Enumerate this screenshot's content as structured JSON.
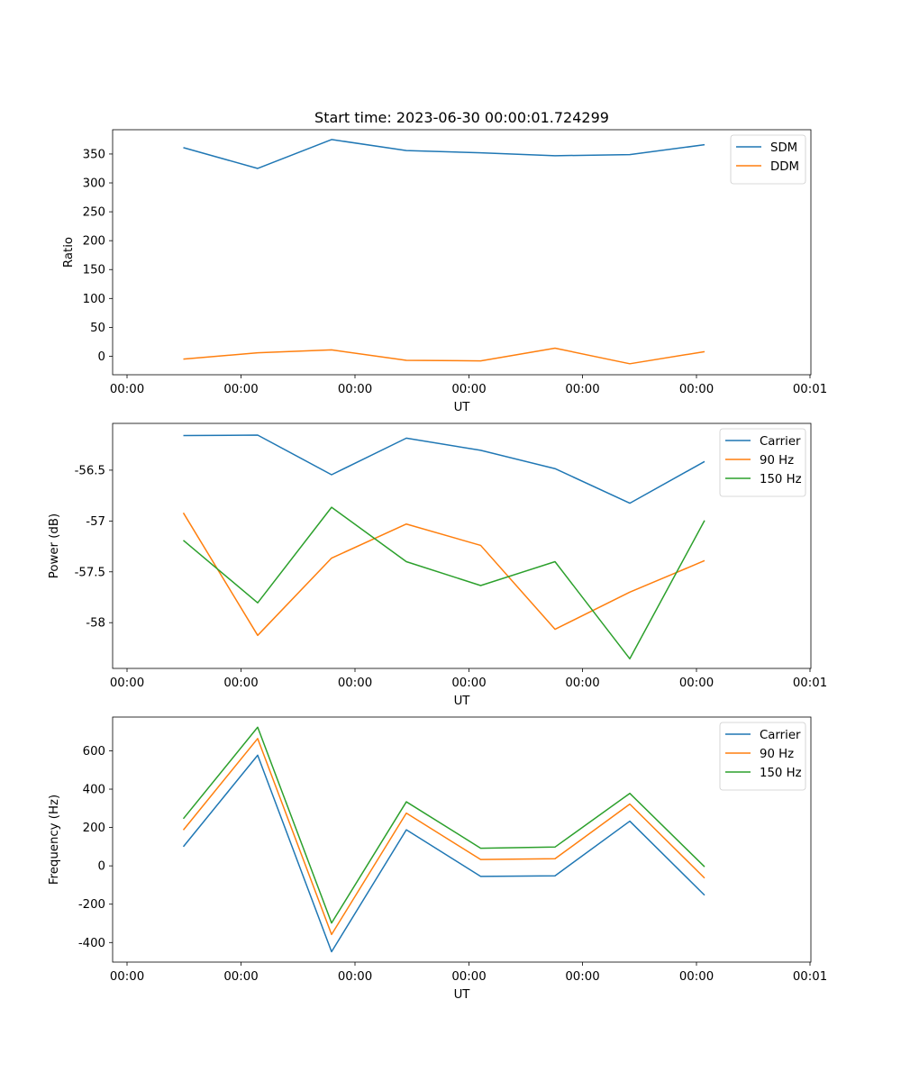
{
  "chart_data": [
    {
      "type": "line",
      "title": "Start time: 2023-06-30 00:00:01.724299",
      "xlabel": "UT",
      "ylabel": "Ratio",
      "x_ticks": [
        "00:00",
        "00:00",
        "00:00",
        "00:00",
        "00:00",
        "00:00",
        "00:00",
        "00:01"
      ],
      "ylim": [
        -32,
        392
      ],
      "y_ticks": [
        0,
        50,
        100,
        150,
        200,
        250,
        300,
        350
      ],
      "legend_position": "upper right",
      "grid": false,
      "series": [
        {
          "name": "SDM",
          "color": "#1f77b4",
          "values": [
            361,
            325,
            375,
            356,
            352,
            347,
            349,
            366
          ]
        },
        {
          "name": "DDM",
          "color": "#ff7f0e",
          "values": [
            -5,
            6,
            11,
            -7,
            -8,
            14,
            -13,
            8
          ]
        }
      ]
    },
    {
      "type": "line",
      "title": "",
      "xlabel": "UT",
      "ylabel": "Power (dB)",
      "x_ticks": [
        "00:00",
        "00:00",
        "00:00",
        "00:00",
        "00:00",
        "00:00",
        "00:00",
        "00:01"
      ],
      "ylim": [
        -58.45,
        -56.04
      ],
      "y_ticks": [
        -58.0,
        -57.5,
        -57.0,
        -56.5
      ],
      "legend_position": "upper right",
      "grid": false,
      "series": [
        {
          "name": "Carrier",
          "color": "#1f77b4",
          "values": [
            -56.16,
            -56.155,
            -56.545,
            -56.185,
            -56.305,
            -56.485,
            -56.825,
            -56.415
          ]
        },
        {
          "name": "90 Hz",
          "color": "#ff7f0e",
          "values": [
            -56.92,
            -58.125,
            -57.365,
            -57.03,
            -57.24,
            -58.065,
            -57.7,
            -57.39
          ]
        },
        {
          "name": "150 Hz",
          "color": "#2ca02c",
          "values": [
            -57.19,
            -57.805,
            -56.865,
            -57.4,
            -57.635,
            -57.4,
            -58.355,
            -56.995
          ]
        }
      ]
    },
    {
      "type": "line",
      "title": "",
      "xlabel": "UT",
      "ylabel": "Frequency (Hz)",
      "x_ticks": [
        "00:00",
        "00:00",
        "00:00",
        "00:00",
        "00:00",
        "00:00",
        "00:00",
        "00:01"
      ],
      "ylim": [
        -502,
        776
      ],
      "y_ticks": [
        -400,
        -200,
        0,
        200,
        400,
        600
      ],
      "legend_position": "upper right",
      "grid": false,
      "series": [
        {
          "name": "Carrier",
          "color": "#1f77b4",
          "values": [
            100,
            577,
            -448,
            188,
            -55,
            -52,
            233,
            -153
          ]
        },
        {
          "name": "90 Hz",
          "color": "#ff7f0e",
          "values": [
            187,
            664,
            -358,
            275,
            33,
            37,
            322,
            -64
          ]
        },
        {
          "name": "150 Hz",
          "color": "#2ca02c",
          "values": [
            246,
            723,
            -298,
            334,
            92,
            98,
            378,
            -5
          ]
        }
      ]
    }
  ]
}
